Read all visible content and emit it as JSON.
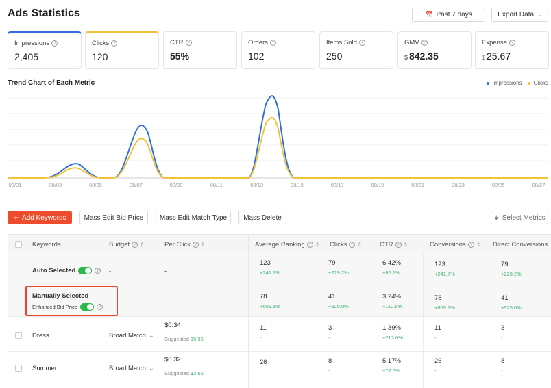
{
  "header": {
    "title": "Ads Statistics",
    "date_range": "Past 7 days",
    "export_label": "Export Data"
  },
  "metrics": [
    {
      "label": "Impressions",
      "value": "2,405",
      "prefix": "",
      "accent": "#2f6fde"
    },
    {
      "label": "Clicks",
      "value": "120",
      "prefix": "",
      "accent": "#f2c23a"
    },
    {
      "label": "CTR",
      "value": "55%",
      "prefix": ""
    },
    {
      "label": "Orders",
      "value": "102",
      "prefix": ""
    },
    {
      "label": "Items Sold",
      "value": "250",
      "prefix": ""
    },
    {
      "label": "GMV",
      "value": "842.35",
      "prefix": "$"
    },
    {
      "label": "Expense",
      "value": "25.67",
      "prefix": "$"
    }
  ],
  "chart": {
    "title": "Trend Chart of Each Metric",
    "legend": [
      "Impressions",
      "Clicks"
    ]
  },
  "chart_data": {
    "type": "line",
    "title": "Trend Chart of Each Metric",
    "x": [
      "08/01",
      "08/03",
      "08/05",
      "08/07",
      "08/09",
      "08/11",
      "08/13",
      "08/15",
      "08/17",
      "08/19",
      "08/21",
      "08/23",
      "08/25",
      "08/27"
    ],
    "series": [
      {
        "name": "Impressions",
        "color": "#2f6fde"
      },
      {
        "name": "Clicks",
        "color": "#f2c23a"
      }
    ],
    "legend": "top-right",
    "grid": true
  },
  "toolbar": {
    "add_keywords": "Add Keywords",
    "mass_edit_bid": "Mass Edit Bid Price",
    "mass_edit_match": "Mass Edit Match Type",
    "mass_delete": "Mass Delete",
    "select_metrics": "Select Metrics"
  },
  "table": {
    "headers": [
      "Keywords",
      "Budget",
      "Per Click",
      "Average Ranking",
      "Clicks",
      "CTR",
      "Conversions",
      "Direct Conversions"
    ],
    "auto": {
      "label": "Auto Selected",
      "budget": "-",
      "per_click": "-",
      "avg_rank": "123",
      "avg_rank_d": "+241.7%",
      "clicks": "79",
      "clicks_d": "+229.2%",
      "ctr": "6.42%",
      "ctr_d": "+86.1%",
      "conv": "123",
      "conv_d": "+241.7%",
      "dconv": "79",
      "dconv_d": "+229.2%"
    },
    "manual": {
      "label": "Manually Selected",
      "sub": "Enhanced Bid Price",
      "budget": "-",
      "per_click": "-",
      "avg_rank": "78",
      "avg_rank_d": "+609.1%",
      "clicks": "41",
      "clicks_d": "+925.0%",
      "ctr": "3.24%",
      "ctr_d": "+110.6%",
      "conv": "78",
      "conv_d": "+609.1%",
      "dconv": "41",
      "dconv_d": "+925.0%"
    },
    "rows": [
      {
        "keyword": "Dress",
        "match": "Broad Match",
        "price": "$0.34",
        "suggested_label": "Suggested",
        "suggested": "$5.95",
        "avg_rank": "11",
        "avg_rank_d": "-",
        "clicks": "3",
        "clicks_d": "-",
        "ctr": "1.39%",
        "ctr_d": "+212.0%",
        "conv": "11",
        "conv_d": "-",
        "dconv": "3",
        "dconv_d": "-"
      },
      {
        "keyword": "Summer",
        "match": "Broad Match",
        "price": "$0.32",
        "suggested_label": "Suggested",
        "suggested": "$2.66",
        "avg_rank": "26",
        "avg_rank_d": "-",
        "clicks": "8",
        "clicks_d": "-",
        "ctr": "5.17%",
        "ctr_d": "+77.6%",
        "conv": "26",
        "conv_d": "-",
        "dconv": "8",
        "dconv_d": "-"
      }
    ]
  },
  "colors": {
    "primary": "#ee4d2d",
    "impressions": "#2f6fde",
    "clicks": "#f2c23a",
    "green": "#3cb371",
    "highlight": "#e8452c"
  }
}
